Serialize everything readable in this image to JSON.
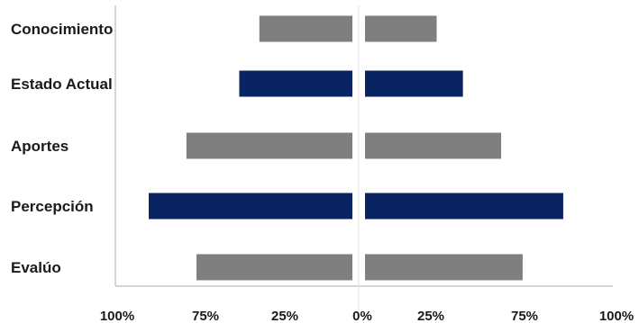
{
  "chart_data": {
    "type": "bar",
    "orientation": "horizontal-diverging",
    "categories": [
      "Conocimiento",
      "Estado Actual",
      "Aportes",
      "Percepción",
      "Evalúo"
    ],
    "series": [
      {
        "side": "left",
        "values": [
          37,
          45,
          66,
          81,
          62
        ]
      },
      {
        "side": "right",
        "values": [
          30,
          41,
          57,
          83,
          66
        ]
      }
    ],
    "bar_colors": [
      "#7f7f7f",
      "#0a2463",
      "#7f7f7f",
      "#0a2463",
      "#7f7f7f"
    ],
    "x_tick_labels": [
      "100%",
      "75%",
      "25%",
      "0%",
      "25%",
      "75%",
      "100%"
    ],
    "title": "",
    "xlabel": "",
    "ylabel": "",
    "grid": false,
    "legend": "none"
  }
}
